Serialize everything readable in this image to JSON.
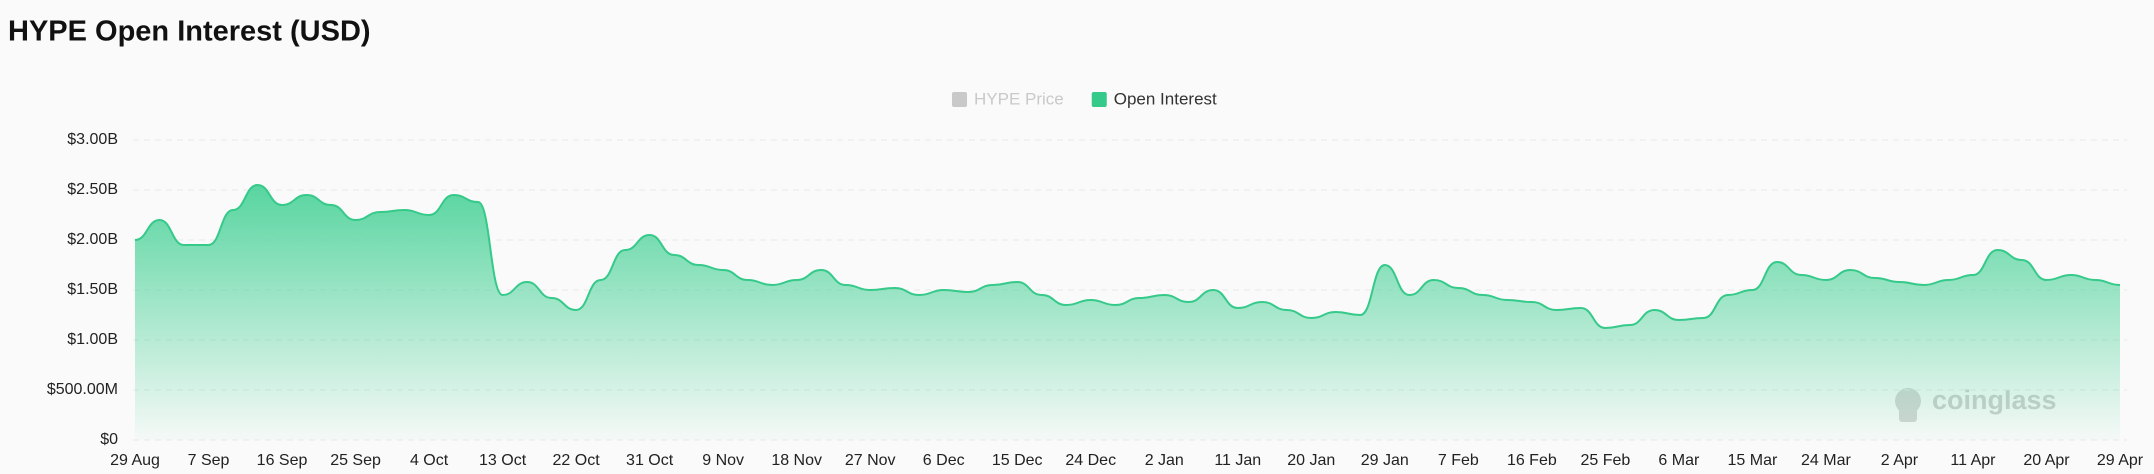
{
  "chart_data": {
    "type": "area",
    "title": "HYPE Open Interest (USD)",
    "legend_inactive": [
      {
        "name": "HYPE Price",
        "color": "#c9c9c9"
      }
    ],
    "watermark": "coinglass",
    "categories": [
      "29 Aug",
      null,
      null,
      "7 Sep",
      null,
      null,
      "16 Sep",
      null,
      null,
      "25 Sep",
      null,
      null,
      "4 Oct",
      null,
      null,
      "13 Oct",
      null,
      null,
      "22 Oct",
      null,
      null,
      "31 Oct",
      null,
      null,
      "9 Nov",
      null,
      null,
      "18 Nov",
      null,
      null,
      "27 Nov",
      null,
      null,
      "6 Dec",
      null,
      null,
      "15 Dec",
      null,
      null,
      "24 Dec",
      null,
      null,
      "2 Jan",
      null,
      null,
      "11 Jan",
      null,
      null,
      "20 Jan",
      null,
      null,
      "29 Jan",
      null,
      null,
      "7 Feb",
      null,
      null,
      "16 Feb",
      null,
      null,
      "25 Feb",
      null,
      null,
      "6 Mar",
      null,
      null,
      "15 Mar",
      null,
      null,
      "24 Mar",
      null,
      null,
      "2 Apr",
      null,
      null,
      "11 Apr",
      null,
      null,
      "20 Apr",
      null,
      null,
      "29 Apr"
    ],
    "series": [
      {
        "name": "Open Interest",
        "color": "#35c98a",
        "values": [
          2000000000.0,
          2200000000.0,
          1950000000.0,
          1950000000.0,
          2300000000.0,
          2550000000.0,
          2350000000.0,
          2450000000.0,
          2350000000.0,
          2200000000.0,
          2280000000.0,
          2300000000.0,
          2250000000.0,
          2450000000.0,
          2380000000.0,
          1450000000.0,
          1580000000.0,
          1420000000.0,
          1300000000.0,
          1600000000.0,
          1900000000.0,
          2050000000.0,
          1850000000.0,
          1750000000.0,
          1700000000.0,
          1600000000.0,
          1550000000.0,
          1600000000.0,
          1700000000.0,
          1550000000.0,
          1500000000.0,
          1520000000.0,
          1450000000.0,
          1500000000.0,
          1480000000.0,
          1550000000.0,
          1580000000.0,
          1450000000.0,
          1350000000.0,
          1400000000.0,
          1350000000.0,
          1420000000.0,
          1450000000.0,
          1380000000.0,
          1500000000.0,
          1320000000.0,
          1380000000.0,
          1300000000.0,
          1220000000.0,
          1280000000.0,
          1250000000.0,
          1750000000.0,
          1450000000.0,
          1600000000.0,
          1520000000.0,
          1450000000.0,
          1400000000.0,
          1380000000.0,
          1300000000.0,
          1320000000.0,
          1120000000.0,
          1150000000.0,
          1300000000.0,
          1200000000.0,
          1220000000.0,
          1450000000.0,
          1500000000.0,
          1780000000.0,
          1650000000.0,
          1600000000.0,
          1700000000.0,
          1620000000.0,
          1580000000.0,
          1550000000.0,
          1600000000.0,
          1650000000.0,
          1900000000.0,
          1800000000.0,
          1600000000.0,
          1650000000.0,
          1600000000.0,
          1550000000.0
        ]
      }
    ],
    "ylim": [
      0,
      3000000000
    ],
    "yticks": [
      {
        "value": 0,
        "label": "$0"
      },
      {
        "value": 500000000,
        "label": "$500.00M"
      },
      {
        "value": 1000000000,
        "label": "$1.00B"
      },
      {
        "value": 1500000000,
        "label": "$1.50B"
      },
      {
        "value": 2000000000,
        "label": "$2.00B"
      },
      {
        "value": 2500000000,
        "label": "$2.50B"
      },
      {
        "value": 3000000000,
        "label": "$3.00B"
      }
    ],
    "grid": true
  }
}
